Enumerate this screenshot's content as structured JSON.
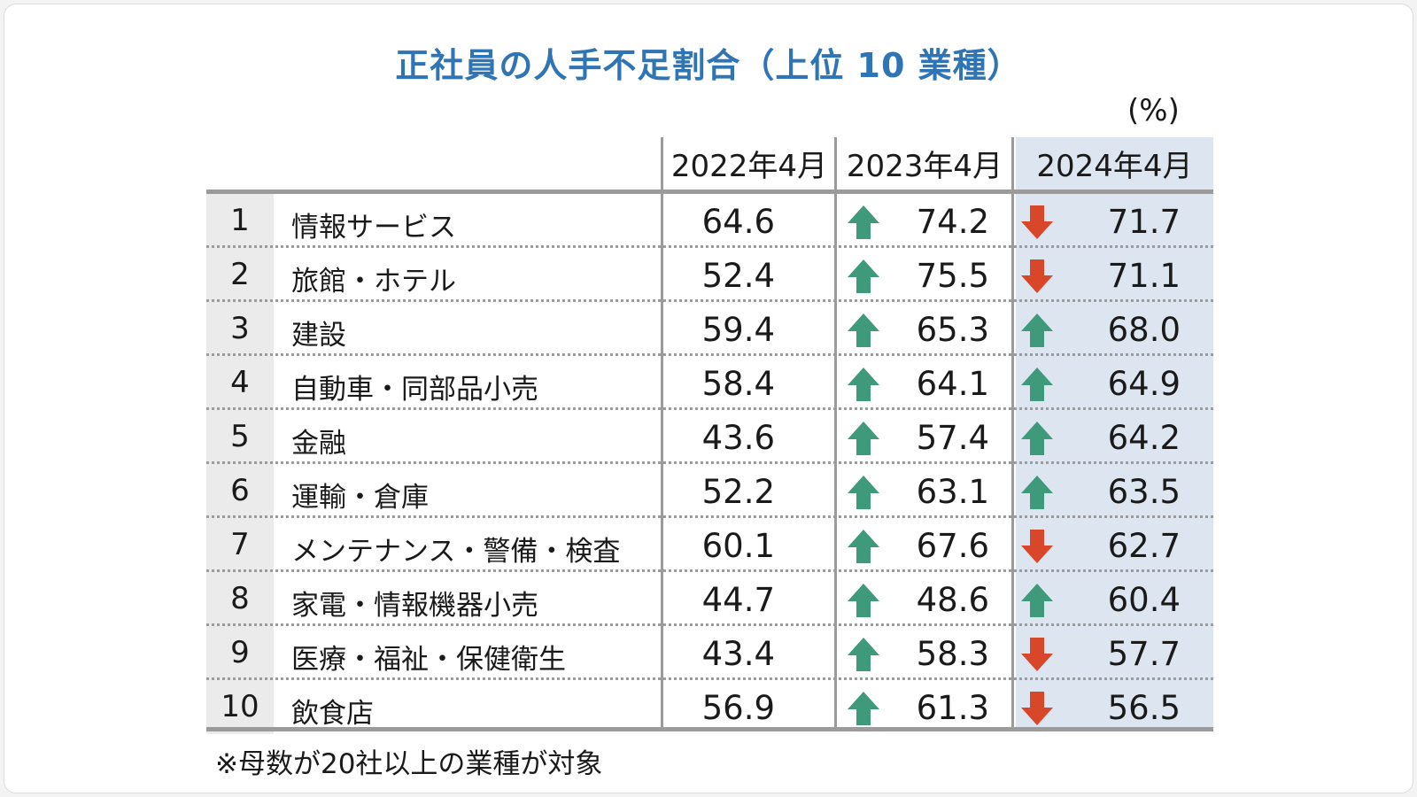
{
  "title": "正社員の人手不足割合（上位 10 業種）",
  "unit": "(%)",
  "note": "※母数が20社以上の業種が対象",
  "colors": {
    "title": "#2f74b5",
    "up_arrow": "#3f9a7c",
    "down_arrow": "#d9472b",
    "highlight": "#dde6f0"
  },
  "chart_data": {
    "type": "table",
    "title": "正社員の人手不足割合（上位 10 業種）",
    "unit": "(%)",
    "columns": [
      "2022年4月",
      "2023年4月",
      "2024年4月"
    ],
    "rows": [
      {
        "rank": "1",
        "industry": "情報サービス",
        "v2022": "64.6",
        "v2023": "74.2",
        "t2023": "up",
        "v2024": "71.7",
        "t2024": "down"
      },
      {
        "rank": "2",
        "industry": "旅館・ホテル",
        "v2022": "52.4",
        "v2023": "75.5",
        "t2023": "up",
        "v2024": "71.1",
        "t2024": "down"
      },
      {
        "rank": "3",
        "industry": "建設",
        "v2022": "59.4",
        "v2023": "65.3",
        "t2023": "up",
        "v2024": "68.0",
        "t2024": "up"
      },
      {
        "rank": "4",
        "industry": "自動車・同部品小売",
        "v2022": "58.4",
        "v2023": "64.1",
        "t2023": "up",
        "v2024": "64.9",
        "t2024": "up"
      },
      {
        "rank": "5",
        "industry": "金融",
        "v2022": "43.6",
        "v2023": "57.4",
        "t2023": "up",
        "v2024": "64.2",
        "t2024": "up"
      },
      {
        "rank": "6",
        "industry": "運輸・倉庫",
        "v2022": "52.2",
        "v2023": "63.1",
        "t2023": "up",
        "v2024": "63.5",
        "t2024": "up"
      },
      {
        "rank": "7",
        "industry": "メンテナンス・警備・検査",
        "v2022": "60.1",
        "v2023": "67.6",
        "t2023": "up",
        "v2024": "62.7",
        "t2024": "down"
      },
      {
        "rank": "8",
        "industry": "家電・情報機器小売",
        "v2022": "44.7",
        "v2023": "48.6",
        "t2023": "up",
        "v2024": "60.4",
        "t2024": "up"
      },
      {
        "rank": "9",
        "industry": "医療・福祉・保健衛生",
        "v2022": "43.4",
        "v2023": "58.3",
        "t2023": "up",
        "v2024": "57.7",
        "t2024": "down"
      },
      {
        "rank": "10",
        "industry": "飲食店",
        "v2022": "56.9",
        "v2023": "61.3",
        "t2023": "up",
        "v2024": "56.5",
        "t2024": "down"
      }
    ]
  }
}
